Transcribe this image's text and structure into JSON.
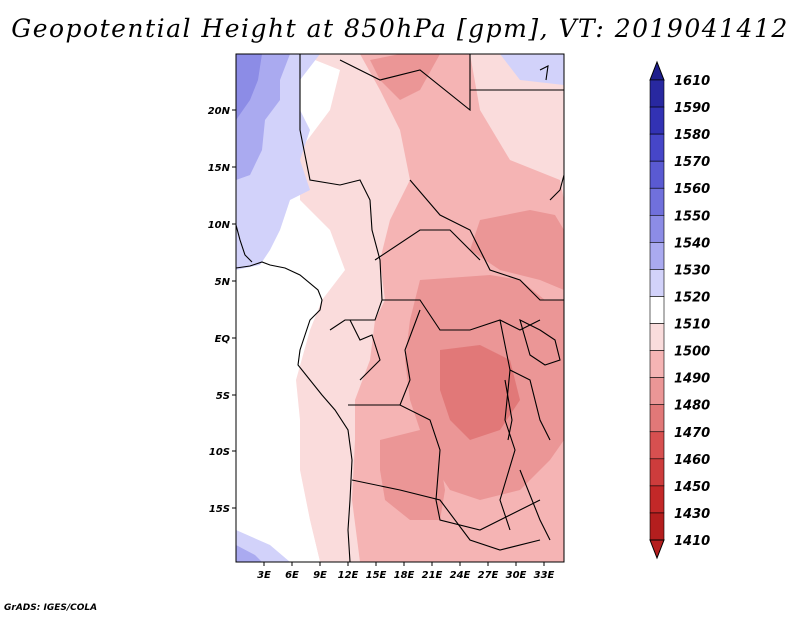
{
  "title": "Geopotential Height at 850hPa [gpm], VT: 2019041412",
  "footer": "GrADS: IGES/COLA",
  "map": {
    "lon_labels": [
      "3E",
      "6E",
      "9E",
      "12E",
      "15E",
      "18E",
      "21E",
      "24E",
      "27E",
      "30E",
      "33E"
    ],
    "lat_labels": [
      "20N",
      "15N",
      "10N",
      "5N",
      "EQ",
      "5S",
      "10S",
      "15S"
    ]
  },
  "legend": {
    "levels": [
      "1610",
      "1590",
      "1580",
      "1570",
      "1560",
      "1550",
      "1540",
      "1530",
      "1520",
      "1510",
      "1500",
      "1490",
      "1480",
      "1470",
      "1460",
      "1450",
      "1430",
      "1410"
    ],
    "colors": [
      "#1e1e8c",
      "#2828a0",
      "#3232b4",
      "#4646c8",
      "#5a5ad2",
      "#7070dc",
      "#8c8ce6",
      "#aaaaf0",
      "#d2d2fa",
      "#ffffff",
      "#fadcdc",
      "#f5b4b4",
      "#eb9696",
      "#e17878",
      "#d75050",
      "#cd3c3c",
      "#c32828",
      "#b41e1e"
    ]
  }
}
